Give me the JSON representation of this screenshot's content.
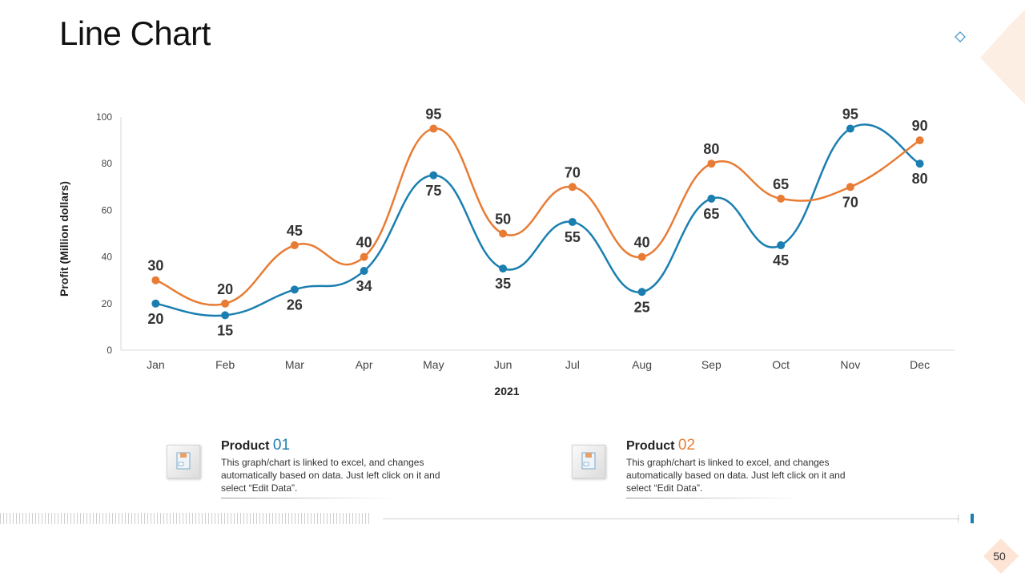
{
  "page": {
    "title": "Line Chart",
    "page_number": "50"
  },
  "colors": {
    "product1": "#1a7fb0",
    "product2": "#e87c34",
    "axis": "#d9d9d9",
    "label": "#333333"
  },
  "chart_data": {
    "type": "line",
    "title": "",
    "xlabel": "2021",
    "ylabel": "Profit  (Million dollars)",
    "ylim": [
      0,
      100
    ],
    "yticks": [
      0,
      20,
      40,
      60,
      80,
      100
    ],
    "categories": [
      "Jan",
      "Feb",
      "Mar",
      "Apr",
      "May",
      "Jun",
      "Jul",
      "Aug",
      "Sep",
      "Oct",
      "Nov",
      "Dec"
    ],
    "series": [
      {
        "name": "Product 01",
        "values": [
          20,
          15,
          26,
          34,
          75,
          35,
          55,
          25,
          65,
          45,
          95,
          80
        ]
      },
      {
        "name": "Product 02",
        "values": [
          30,
          20,
          45,
          40,
          95,
          50,
          70,
          40,
          80,
          65,
          70,
          90
        ]
      }
    ],
    "legend": "bottom"
  },
  "legend": [
    {
      "label": "Product",
      "number": "01",
      "description": "This graph/chart is linked to excel, and changes automatically based on data. Just left click on it and select “Edit Data”."
    },
    {
      "label": "Product",
      "number": "02",
      "description": "This graph/chart is linked to excel, and changes automatically based on data. Just left click on it and select “Edit Data”."
    }
  ]
}
